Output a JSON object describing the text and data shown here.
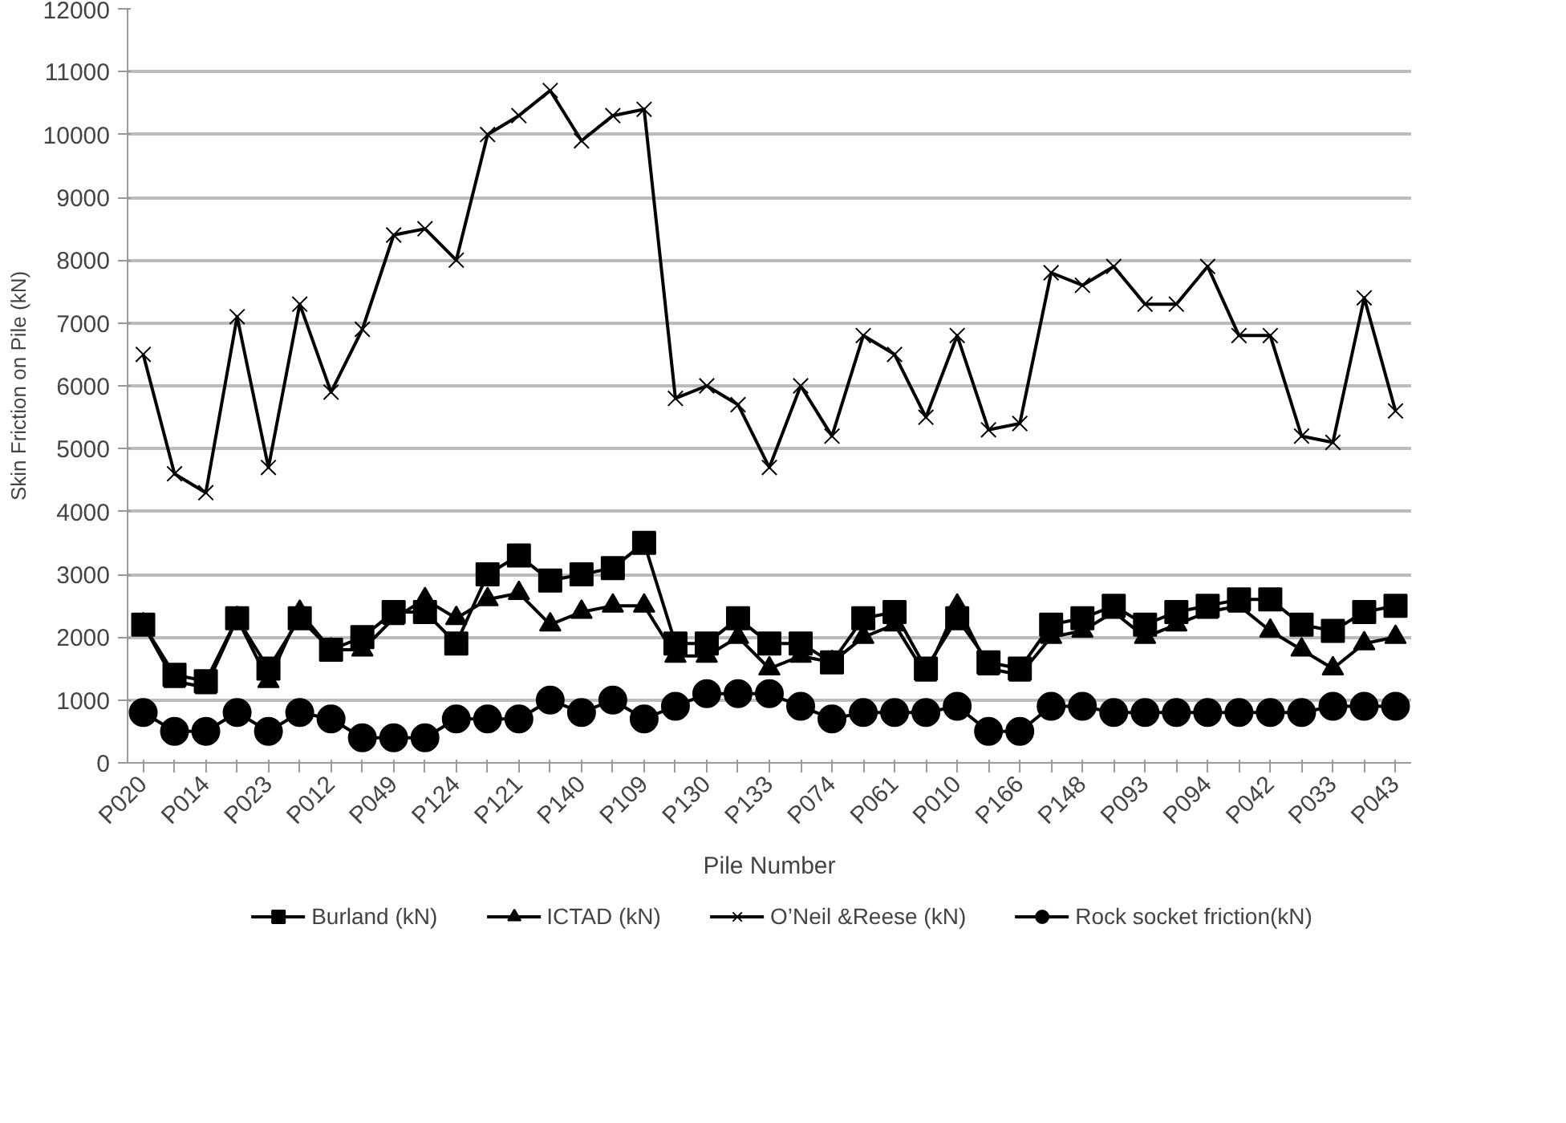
{
  "chart_data": {
    "type": "line",
    "xlabel": "Pile Number",
    "ylabel": "Skin Friction on Pile (kN)",
    "categories": [
      "P020",
      null,
      "P014",
      null,
      "P023",
      null,
      "P012",
      null,
      "P049",
      null,
      "P124",
      null,
      "P121",
      null,
      "P140",
      null,
      "P109",
      null,
      "P130",
      null,
      "P133",
      null,
      "P074",
      null,
      "P061",
      null,
      "P010",
      null,
      "P166",
      null,
      "P148",
      null,
      "P093",
      null,
      "P094",
      null,
      "P042",
      null,
      "P033",
      null,
      "P043"
    ],
    "ylim": [
      0,
      12000
    ],
    "yticks": [
      0,
      1000,
      2000,
      3000,
      4000,
      5000,
      6000,
      7000,
      8000,
      9000,
      10000,
      11000,
      12000
    ],
    "grid": "y",
    "legend": "bottom",
    "line_style": "solid",
    "series": [
      {
        "name": "Burland (kN)",
        "color": "#000000",
        "marker": "square",
        "values": [
          2200,
          1400,
          1300,
          2300,
          1500,
          2300,
          1800,
          2000,
          2400,
          2400,
          1900,
          3000,
          3300,
          2900,
          3000,
          3100,
          3500,
          1900,
          1900,
          2300,
          1900,
          1900,
          1600,
          2300,
          2400,
          1500,
          2300,
          1600,
          1500,
          2200,
          2300,
          2500,
          2200,
          2400,
          2500,
          2600,
          2600,
          2200,
          2100,
          2400,
          2500
        ]
      },
      {
        "name": "ICTAD (kN)",
        "color": "#000000",
        "marker": "triangle",
        "values": [
          2200,
          1300,
          1200,
          2300,
          1300,
          2400,
          1800,
          1800,
          2300,
          2600,
          2300,
          2600,
          2700,
          2200,
          2400,
          2500,
          2500,
          1700,
          1700,
          2000,
          1500,
          1700,
          1600,
          2000,
          2200,
          1400,
          2500,
          1500,
          1400,
          2000,
          2100,
          2400,
          2000,
          2200,
          2400,
          2500,
          2100,
          1800,
          1500,
          1900,
          2000
        ]
      },
      {
        "name": "O’Neil &Reese (kN)",
        "color": "#000000",
        "marker": "cross",
        "values": [
          6500,
          4600,
          4300,
          7100,
          4700,
          7300,
          5900,
          6900,
          8400,
          8500,
          8000,
          10000,
          10300,
          10700,
          9900,
          10300,
          10400,
          5800,
          6000,
          5700,
          4700,
          6000,
          5200,
          6800,
          6500,
          5500,
          6800,
          5300,
          5400,
          7800,
          7600,
          7900,
          7300,
          7300,
          7900,
          6800,
          6800,
          5200,
          5100,
          7400,
          5600
        ]
      },
      {
        "name": "Rock socket friction(kN)",
        "color": "#000000",
        "marker": "circle",
        "values": [
          800,
          500,
          500,
          800,
          500,
          800,
          700,
          400,
          400,
          400,
          700,
          700,
          700,
          1000,
          800,
          1000,
          700,
          900,
          1100,
          1100,
          1100,
          900,
          700,
          800,
          800,
          800,
          900,
          500,
          500,
          900,
          900,
          800,
          800,
          800,
          800,
          800,
          800,
          800,
          900,
          900,
          900
        ]
      }
    ]
  }
}
